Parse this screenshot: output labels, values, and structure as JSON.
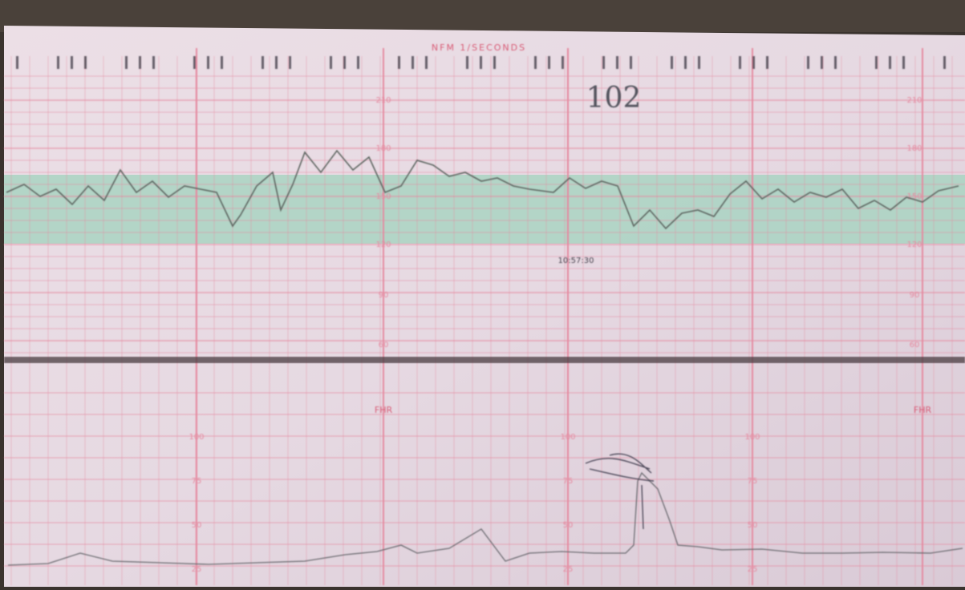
{
  "header": {
    "title": "NFM 1/SECONDS"
  },
  "annotation": "102",
  "timestamp": "10:57:30",
  "fhr_label": "FHR",
  "fhr_scale": [
    "210",
    "180",
    "150",
    "120",
    "90",
    "60"
  ],
  "uc_scale": [
    "100",
    "75",
    "50",
    "25"
  ]
}
